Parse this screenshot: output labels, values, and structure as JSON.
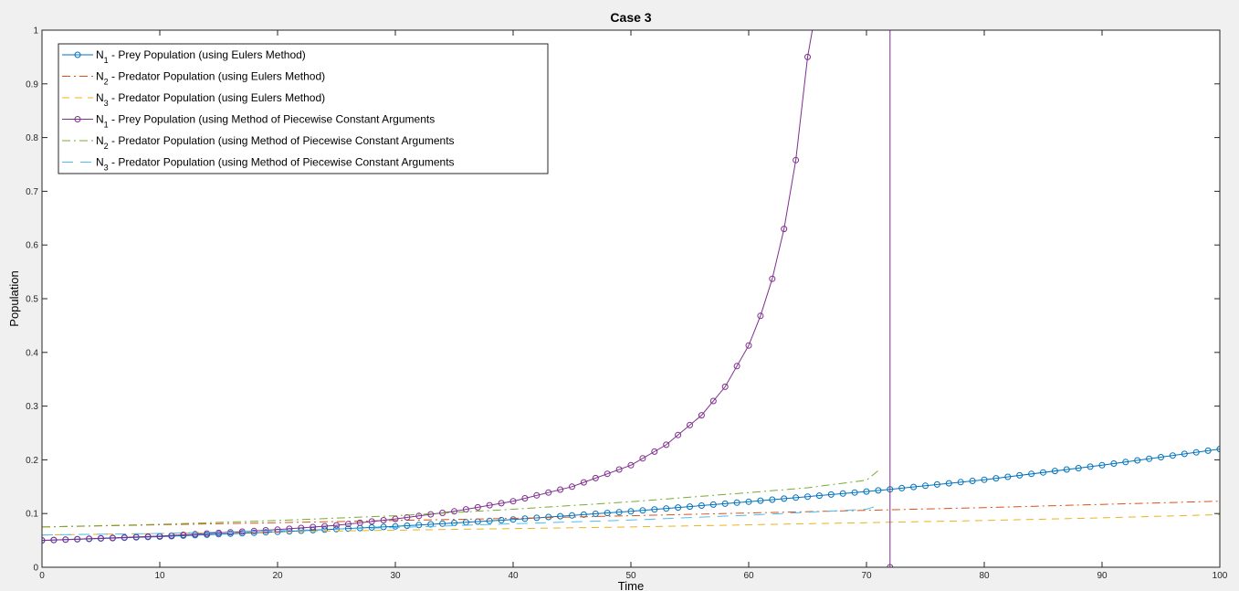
{
  "chart_data": {
    "type": "line",
    "title": "Case 3",
    "xlabel": "Time",
    "ylabel": "Population",
    "xlim": [
      0,
      100
    ],
    "ylim": [
      0,
      1
    ],
    "x_ticks": [
      "0",
      "10",
      "20",
      "30",
      "40",
      "50",
      "60",
      "70",
      "80",
      "90",
      "100"
    ],
    "y_ticks": [
      "0",
      "0.1",
      "0.2",
      "0.3",
      "0.4",
      "0.5",
      "0.6",
      "0.7",
      "0.8",
      "0.9",
      "1"
    ],
    "grid": false,
    "legend_position": "top-left",
    "series": [
      {
        "name": "N1 - Prey Population (using Eulers Method)",
        "legend_main": "N",
        "legend_sub": "1",
        "legend_rest": " - Prey Population (using Eulers Method)",
        "color": "#0072bd",
        "dash": "solid",
        "marker": "circle",
        "x": [
          0,
          10,
          20,
          30,
          40,
          50,
          60,
          70,
          72,
          80,
          90,
          100
        ],
        "y": [
          0.05,
          0.057,
          0.066,
          0.076,
          0.089,
          0.104,
          0.122,
          0.141,
          0.145,
          0.163,
          0.19,
          0.22
        ]
      },
      {
        "name": "N2 - Predator Population (using Eulers Method)",
        "legend_main": "N",
        "legend_sub": "2",
        "legend_rest": " - Predator Population (using Eulers Method)",
        "color": "#d95319",
        "dash": "dashdot",
        "marker": "none",
        "x": [
          0,
          10,
          20,
          30,
          40,
          50,
          60,
          70,
          80,
          90,
          100
        ],
        "y": [
          0.075,
          0.079,
          0.083,
          0.087,
          0.091,
          0.096,
          0.101,
          0.106,
          0.111,
          0.117,
          0.123
        ]
      },
      {
        "name": "N3 - Predator Population (using Eulers Method)",
        "legend_main": "N",
        "legend_sub": "3",
        "legend_rest": " - Predator Population (using Eulers Method)",
        "color": "#edb120",
        "dash": "dashed",
        "marker": "none",
        "x": [
          0,
          10,
          20,
          30,
          40,
          50,
          60,
          70,
          80,
          90,
          100
        ],
        "y": [
          0.06,
          0.063,
          0.066,
          0.069,
          0.072,
          0.075,
          0.079,
          0.083,
          0.087,
          0.092,
          0.098
        ]
      },
      {
        "name": "N1 - Prey Population (using Method of Piecewise Constant Arguments",
        "legend_main": "N",
        "legend_sub": "1",
        "legend_rest": " - Prey Population (using Method of Piecewise Constant Arguments",
        "color": "#7e2f8e",
        "dash": "solid",
        "marker": "circle",
        "x": [
          0,
          5,
          10,
          15,
          20,
          25,
          30,
          35,
          40,
          45,
          50,
          53,
          56,
          58,
          60,
          61,
          62,
          63,
          64,
          65,
          65.4
        ],
        "y": [
          0.05,
          0.054,
          0.058,
          0.064,
          0.07,
          0.078,
          0.09,
          0.104,
          0.123,
          0.15,
          0.19,
          0.228,
          0.283,
          0.336,
          0.413,
          0.468,
          0.537,
          0.63,
          0.758,
          0.95,
          1.0
        ],
        "drop": {
          "x": 72,
          "y_from": 1.0,
          "y_to": 0
        }
      },
      {
        "name": "N2 - Predator Population (using Method of Piecewise Constant Arguments",
        "legend_main": "N",
        "legend_sub": "2",
        "legend_rest": " - Predator Population (using Method of Piecewise Constant Arguments",
        "color": "#77ac30",
        "dash": "dashdot",
        "marker": "none",
        "x": [
          0,
          10,
          20,
          30,
          40,
          50,
          60,
          65,
          70,
          71
        ],
        "y": [
          0.075,
          0.08,
          0.087,
          0.096,
          0.108,
          0.122,
          0.139,
          0.148,
          0.162,
          0.18
        ]
      },
      {
        "name": "N3 - Predator Population (using Method of Piecewise Constant Arguments",
        "legend_main": "N",
        "legend_sub": "3",
        "legend_rest": " - Predator Population (using Method of Piecewise Constant Arguments",
        "color": "#4dbeee",
        "dash": "longdash",
        "marker": "none",
        "x": [
          0,
          10,
          20,
          30,
          40,
          50,
          60,
          70,
          71
        ],
        "y": [
          0.06,
          0.063,
          0.068,
          0.074,
          0.081,
          0.088,
          0.097,
          0.108,
          0.115
        ]
      }
    ]
  }
}
